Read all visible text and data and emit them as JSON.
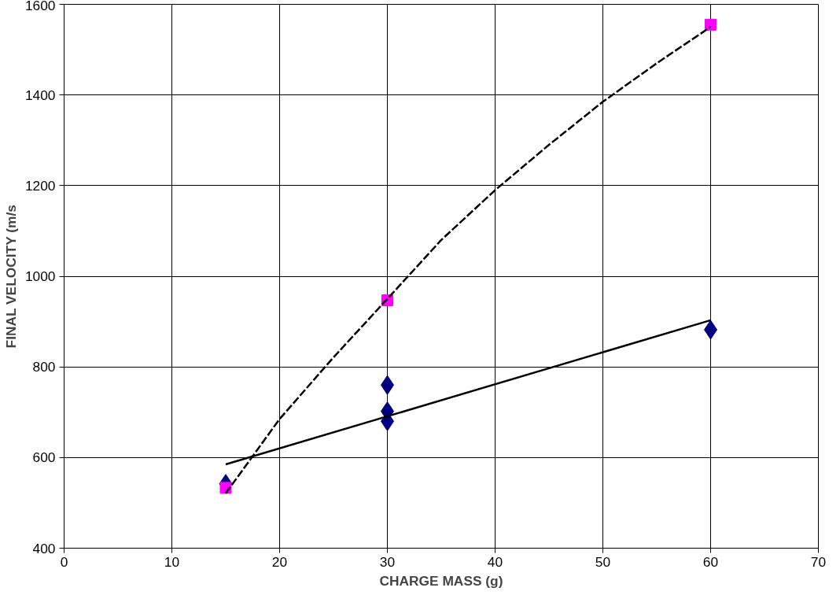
{
  "chart_data": {
    "type": "scatter",
    "xlabel": "CHARGE MASS (g)",
    "ylabel": "FINAL VELOCITY (m/s",
    "xlim": [
      0,
      70
    ],
    "ylim": [
      400,
      1600
    ],
    "xticks": [
      0,
      10,
      20,
      30,
      40,
      50,
      60,
      70
    ],
    "yticks": [
      400,
      600,
      800,
      1000,
      1200,
      1400,
      1600
    ],
    "grid": true,
    "series": [
      {
        "type": "line",
        "color": "#000000",
        "line_style": "solid",
        "x": [
          15,
          60
        ],
        "values": [
          585,
          903
        ]
      },
      {
        "type": "line",
        "color": "#000000",
        "line_style": "dashed",
        "x": [
          15,
          20,
          25,
          30,
          35,
          40,
          45,
          50,
          55,
          60
        ],
        "values": [
          521,
          685,
          821,
          950,
          1080,
          1190,
          1290,
          1385,
          1470,
          1550
        ]
      },
      {
        "color": "#000080",
        "marker": "diamond",
        "x": [
          15,
          30,
          30,
          30,
          60
        ],
        "values": [
          542,
          760,
          702,
          680,
          882
        ]
      },
      {
        "color": "#ff00ff",
        "marker": "square",
        "x": [
          15,
          30,
          60
        ],
        "values": [
          533,
          947,
          1555
        ]
      }
    ]
  }
}
